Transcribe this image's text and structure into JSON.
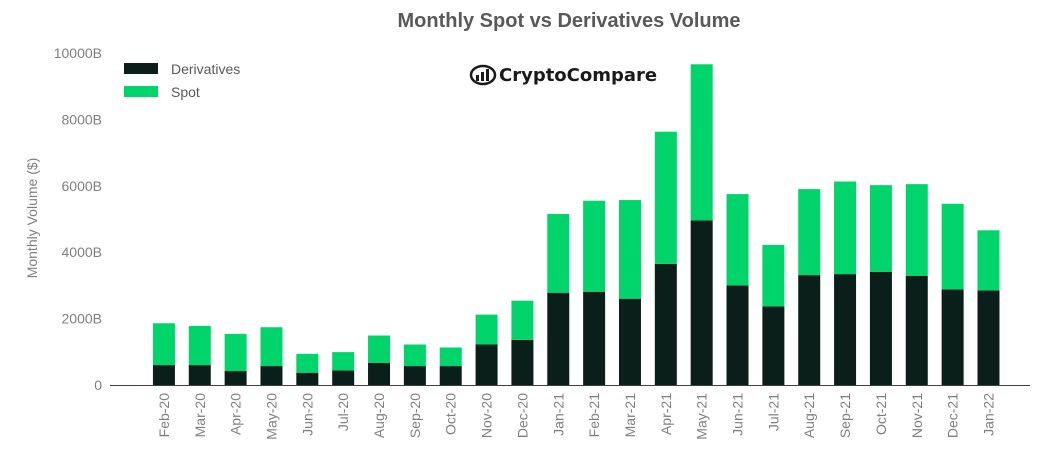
{
  "colors": {
    "derivatives": "#0b1f1a",
    "spot": "#00d46a",
    "axis": "#404040",
    "text": "#7f7f7f"
  },
  "logo": {
    "text": "CryptoCompare",
    "icon": "cryptocompare-logo-icon"
  },
  "chart_data": {
    "type": "bar",
    "stacked": true,
    "title": "Monthly Spot vs Derivatives Volume",
    "xlabel": "",
    "ylabel": "Monthly Volume ($)",
    "ylim": [
      0,
      10000
    ],
    "yticks": [
      0,
      2000,
      4000,
      6000,
      8000,
      10000
    ],
    "ytick_labels": [
      "0",
      "2000B",
      "4000B",
      "6000B",
      "8000B",
      "10000B"
    ],
    "legend": "top-left",
    "categories": [
      "Feb-20",
      "Mar-20",
      "Apr-20",
      "May-20",
      "Jun-20",
      "Jul-20",
      "Aug-20",
      "Sep-20",
      "Oct-20",
      "Nov-20",
      "Dec-20",
      "Jan-21",
      "Feb-21",
      "Mar-21",
      "Apr-21",
      "May-21",
      "Jun-21",
      "Jul-21",
      "Aug-21",
      "Sep-21",
      "Oct-21",
      "Nov-21",
      "Dec-21",
      "Jan-22"
    ],
    "series": [
      {
        "name": "Derivatives",
        "values": [
          600,
          600,
          420,
          570,
          370,
          440,
          670,
          570,
          570,
          1220,
          1360,
          2780,
          2810,
          2600,
          3650,
          4960,
          3000,
          2370,
          3310,
          3340,
          3410,
          3290,
          2880,
          2850
        ]
      },
      {
        "name": "Spot",
        "values": [
          1260,
          1180,
          1120,
          1170,
          570,
          550,
          820,
          650,
          560,
          900,
          1180,
          2370,
          2740,
          2970,
          3980,
          4700,
          2750,
          1850,
          2590,
          2790,
          2610,
          2760,
          2580,
          1810
        ]
      }
    ]
  }
}
